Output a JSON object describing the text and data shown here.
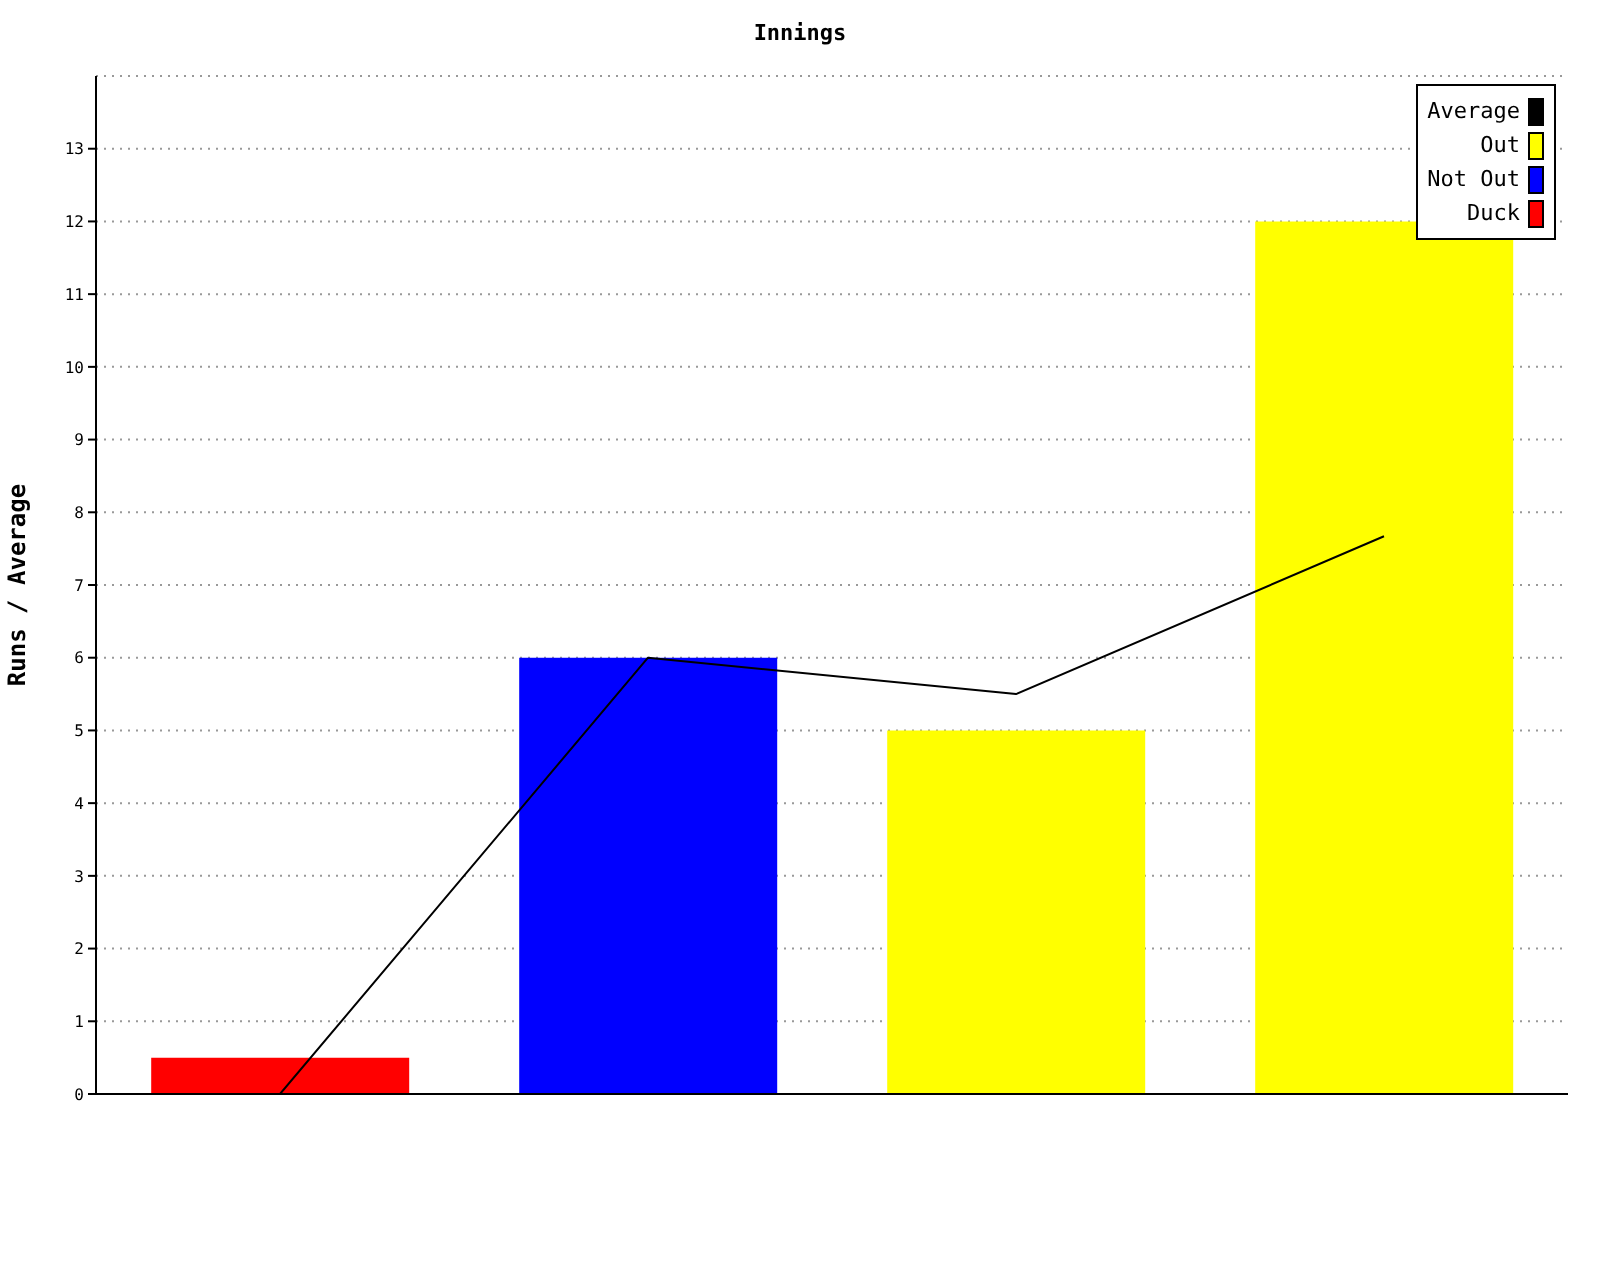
{
  "chart_data": {
    "type": "bar",
    "title": "Innings",
    "ylabel": "Runs / Average",
    "categories": [
      null,
      null,
      null,
      null
    ],
    "stacked": true,
    "ylim": [
      0,
      14
    ],
    "yticks": [
      0,
      1,
      2,
      3,
      4,
      5,
      6,
      7,
      8,
      9,
      10,
      11,
      12,
      13
    ],
    "grid": "y",
    "legend": "top right",
    "marker": "none",
    "series": [
      {
        "name": "Average",
        "type": "line",
        "color": "#000000",
        "values": [
          0,
          6,
          5.5,
          7.67
        ]
      },
      {
        "name": "Out",
        "color": "#ffff00",
        "values": [
          null,
          null,
          5,
          12
        ]
      },
      {
        "name": "Not Out",
        "color": "#0000ff",
        "values": [
          null,
          6,
          null,
          null
        ]
      },
      {
        "name": "Duck",
        "color": "#ff0000",
        "values": [
          0.5,
          null,
          null,
          null
        ]
      }
    ]
  }
}
